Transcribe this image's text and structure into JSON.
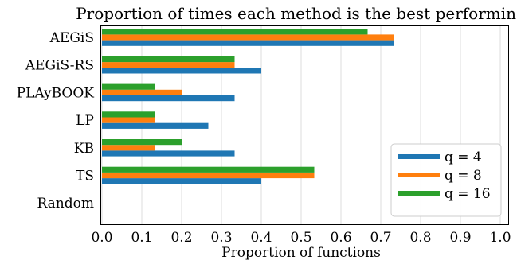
{
  "chart_data": {
    "type": "bar",
    "orientation": "horizontal",
    "title": "Proportion of times each method is the best performing",
    "xlabel": "Proportion of functions",
    "ylabel": "",
    "xlim": [
      0,
      1
    ],
    "xticks": [
      "0.0",
      "0.1",
      "0.2",
      "0.3",
      "0.4",
      "0.5",
      "0.6",
      "0.7",
      "0.8",
      "0.9",
      "1.0"
    ],
    "grid": "vertical",
    "legend_position": "lower-right",
    "categories": [
      "AEGiS",
      "AEGiS-RS",
      "PLAyBOOK",
      "LP",
      "KB",
      "TS",
      "Random"
    ],
    "series": [
      {
        "name": "q = 4",
        "color": "#1f77b4",
        "values": [
          0.733,
          0.4,
          0.333,
          0.267,
          0.333,
          0.4,
          0
        ]
      },
      {
        "name": "q = 8",
        "color": "#ff7f0e",
        "values": [
          0.733,
          0.333,
          0.2,
          0.133,
          0.133,
          0.533,
          0
        ]
      },
      {
        "name": "q = 16",
        "color": "#2ca02c",
        "values": [
          0.667,
          0.333,
          0.133,
          0.133,
          0.2,
          0.533,
          0
        ]
      }
    ]
  }
}
